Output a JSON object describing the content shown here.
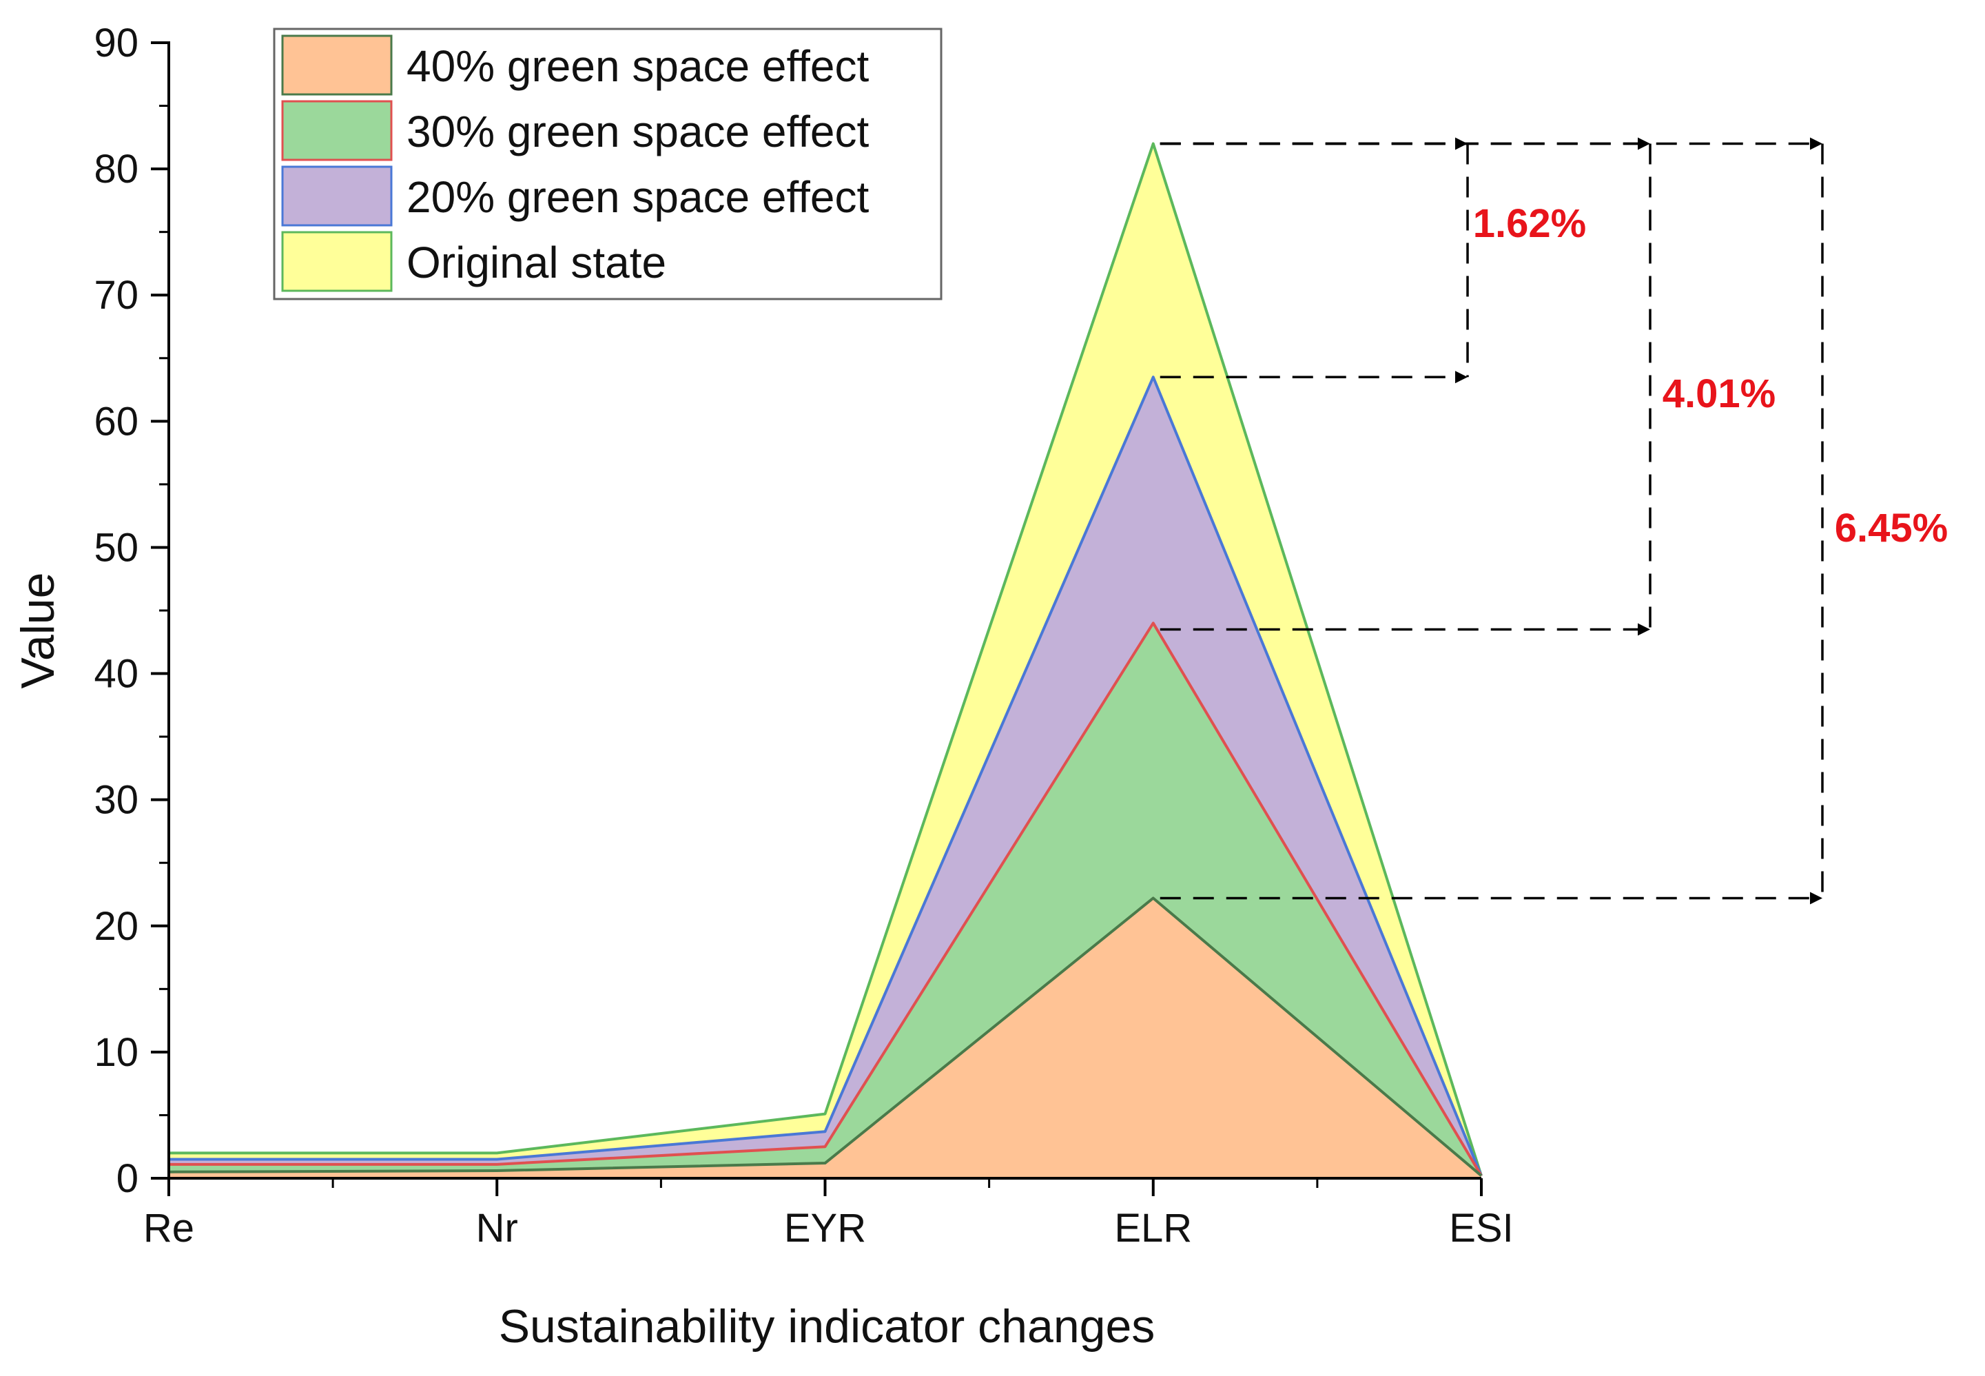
{
  "chart_data": {
    "type": "area",
    "title": "",
    "xlabel": "Sustainability indicator changes",
    "ylabel": "Value",
    "categories": [
      "Re",
      "Nr",
      "EYR",
      "ELR",
      "ESI"
    ],
    "ylim": [
      0,
      90
    ],
    "yticks": [
      0,
      10,
      20,
      30,
      40,
      50,
      60,
      70,
      80,
      90
    ],
    "grid": false,
    "legend_position": "top-left",
    "series": [
      {
        "name": "Original state",
        "values": [
          2.0,
          2.0,
          5.1,
          82.0,
          0.2
        ],
        "fill": "#ffff99",
        "stroke": "#5cb85c"
      },
      {
        "name": "20% green space effect",
        "values": [
          1.5,
          1.5,
          3.7,
          63.5,
          0.2
        ],
        "fill": "#c3b1d8",
        "stroke": "#4a78d6"
      },
      {
        "name": "30% green space effect",
        "values": [
          1.1,
          1.1,
          2.5,
          44.0,
          0.2
        ],
        "fill": "#9bd89b",
        "stroke": "#e05050"
      },
      {
        "name": "40% green space effect",
        "values": [
          0.5,
          0.6,
          1.2,
          22.2,
          0.2
        ],
        "fill": "#ffc395",
        "stroke": "#4a7a4a"
      }
    ],
    "legend_order": [
      "40% green space effect",
      "30% green space effect",
      "20% green space effect",
      "Original state"
    ],
    "annotations": [
      {
        "label": "1.62%",
        "from_value": 63.5,
        "to_value": 82.0,
        "color": "#e8141b"
      },
      {
        "label": "4.01%",
        "from_value": 43.5,
        "to_value": 82.0,
        "color": "#e8141b"
      },
      {
        "label": "6.45%",
        "from_value": 22.2,
        "to_value": 82.0,
        "color": "#e8141b"
      }
    ]
  }
}
